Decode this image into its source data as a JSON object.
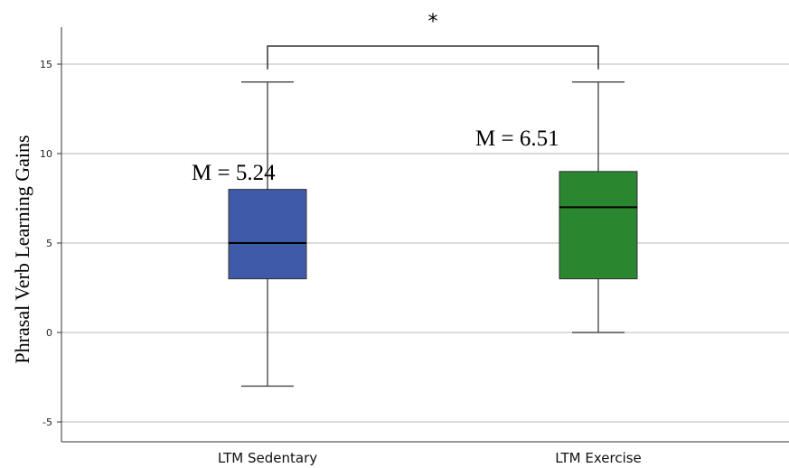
{
  "chart_data": {
    "type": "box",
    "categories": [
      "LTM Sedentary",
      "LTM Exercise"
    ],
    "ylabel": "Phrasal Verb Learning Gains",
    "xlabel": "",
    "ylim": [
      -6,
      17
    ],
    "yticks": [
      15,
      10,
      5,
      0,
      -5
    ],
    "grid": true,
    "boxes": [
      {
        "category": "LTM Sedentary",
        "whisker_low": -3,
        "q1": 3,
        "median": 5,
        "q3": 8,
        "whisker_high": 14,
        "color": "#3f5aa8",
        "mean_label": "M = 5.24"
      },
      {
        "category": "LTM Exercise",
        "whisker_low": 0,
        "q1": 3,
        "median": 7,
        "q3": 9,
        "whisker_high": 14,
        "color": "#2a862f",
        "mean_label": "M = 6.51"
      }
    ],
    "significance": {
      "between": [
        "LTM Sedentary",
        "LTM Exercise"
      ],
      "label": "*"
    }
  }
}
